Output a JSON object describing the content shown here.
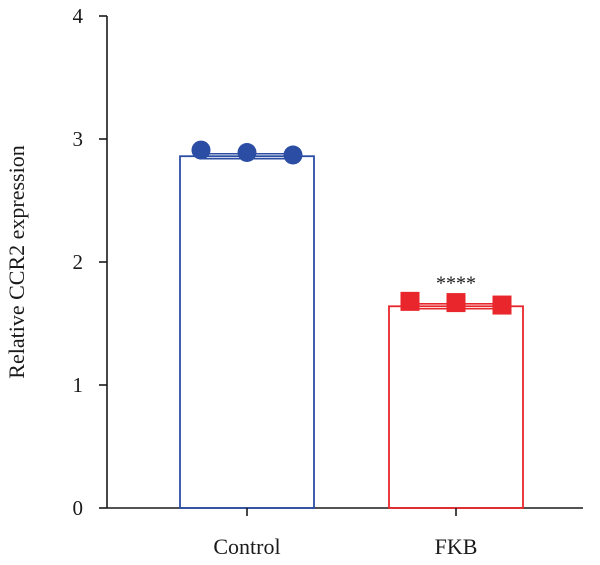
{
  "chart_data": {
    "type": "bar",
    "title": "",
    "xlabel": "",
    "ylabel": "Relative CCR2 expression",
    "ylim": [
      0,
      4
    ],
    "yticks": [
      0,
      1,
      2,
      3,
      4
    ],
    "ytick_labels": [
      "0",
      "1",
      "2",
      "3",
      "4"
    ],
    "grid": false,
    "categories": [
      "Control",
      "FKB"
    ],
    "values": [
      2.86,
      1.64
    ],
    "error": [
      0.02,
      0.02
    ],
    "points": [
      [
        2.91,
        2.89,
        2.87
      ],
      [
        1.68,
        1.67,
        1.65
      ]
    ],
    "marker": [
      "circle",
      "square"
    ],
    "colors": [
      "#2b4da3",
      "#e8262b"
    ],
    "annotations": [
      {
        "category": "FKB",
        "text": "****"
      }
    ]
  }
}
